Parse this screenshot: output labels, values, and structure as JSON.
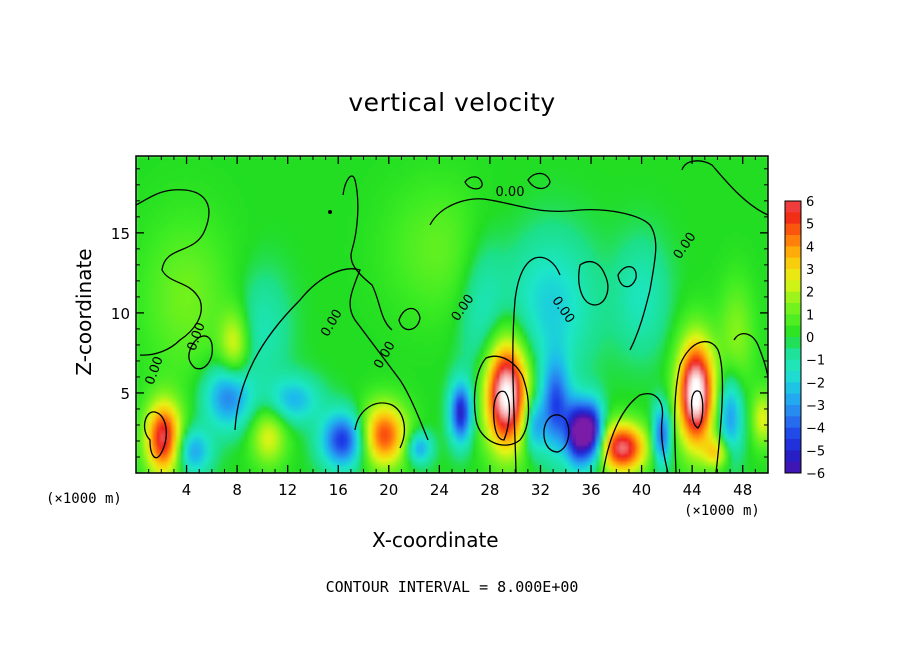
{
  "chart_data": {
    "type": "heatmap",
    "title": "vertical velocity",
    "xlabel": "X-coordinate",
    "ylabel": "Z-coordinate",
    "x_multiplier": "(×1000 m)",
    "y_multiplier": "(×1000 m)",
    "xlim": [
      0,
      50
    ],
    "ylim": [
      0,
      19.8
    ],
    "x_ticks": [
      "4",
      "8",
      "12",
      "16",
      "20",
      "24",
      "28",
      "32",
      "36",
      "40",
      "44",
      "48"
    ],
    "y_ticks": [
      "5",
      "10",
      "15"
    ],
    "colorbar_ticks": [
      "6",
      "5",
      "4",
      "3",
      "2",
      "1",
      "0",
      "−1",
      "−2",
      "−3",
      "−4",
      "−5",
      "−6"
    ],
    "colorbar_range": [
      -6,
      6
    ],
    "contour_labels": [
      "0.00",
      "0.00",
      "0.00",
      "0.00",
      "0.00",
      "0.00",
      "0.00",
      "0.00"
    ],
    "contour_interval_text": "CONTOUR INTERVAL = 8.000E+00",
    "field_features": [
      {
        "x": 2.2,
        "z": 2.2,
        "value": 6,
        "sx": 1.0,
        "sz": 1.6
      },
      {
        "x": 4.5,
        "z": 1.4,
        "value": -3,
        "sx": 1.0,
        "sz": 1.0
      },
      {
        "x": 7.3,
        "z": 4.8,
        "value": -3.5,
        "sx": 1.3,
        "sz": 1.4
      },
      {
        "x": 7.8,
        "z": 8.0,
        "value": 2.5,
        "sx": 0.8,
        "sz": 1.5
      },
      {
        "x": 10.5,
        "z": 2.3,
        "value": 2.5,
        "sx": 1.0,
        "sz": 1.3
      },
      {
        "x": 12.5,
        "z": 4.6,
        "value": -2.5,
        "sx": 1.4,
        "sz": 1.0
      },
      {
        "x": 16.4,
        "z": 2.1,
        "value": -4.8,
        "sx": 1.2,
        "sz": 1.2
      },
      {
        "x": 19.6,
        "z": 2.4,
        "value": 5,
        "sx": 1.3,
        "sz": 1.4
      },
      {
        "x": 22.4,
        "z": 1.6,
        "value": -3,
        "sx": 0.7,
        "sz": 0.7
      },
      {
        "x": 25.7,
        "z": 3.8,
        "value": -5.2,
        "sx": 0.6,
        "sz": 1.3
      },
      {
        "x": 29.3,
        "z": 5.0,
        "value": 8,
        "sx": 1.2,
        "sz": 2.4
      },
      {
        "x": 31.5,
        "z": 3.0,
        "value": -3,
        "sx": 0.6,
        "sz": 1.2
      },
      {
        "x": 33.2,
        "z": 4.2,
        "value": -4.2,
        "sx": 0.8,
        "sz": 2.0
      },
      {
        "x": 35.0,
        "z": 2.5,
        "value": -6.5,
        "sx": 0.7,
        "sz": 1.4
      },
      {
        "x": 36.2,
        "z": 2.6,
        "value": -5.5,
        "sx": 0.6,
        "sz": 1.3
      },
      {
        "x": 38.5,
        "z": 1.6,
        "value": 6.2,
        "sx": 1.3,
        "sz": 1.1
      },
      {
        "x": 41.6,
        "z": 2.4,
        "value": -4.2,
        "sx": 0.5,
        "sz": 1.3
      },
      {
        "x": 44.3,
        "z": 5.0,
        "value": 8,
        "sx": 1.0,
        "sz": 2.3
      },
      {
        "x": 47.0,
        "z": 3.6,
        "value": -3.2,
        "sx": 0.7,
        "sz": 1.8
      },
      {
        "x": 46.0,
        "z": 1.3,
        "value": 3,
        "sx": 0.7,
        "sz": 0.7
      },
      {
        "x": 49.6,
        "z": 3.4,
        "value": 2.5,
        "sx": 0.6,
        "sz": 1.2
      },
      {
        "x": 32.8,
        "z": 10.5,
        "value": -2,
        "sx": 2.4,
        "sz": 3.0
      },
      {
        "x": 27.5,
        "z": 10.0,
        "value": -1.4,
        "sx": 1.3,
        "sz": 3.5
      },
      {
        "x": 4.0,
        "z": 11.0,
        "value": 1.2,
        "sx": 2.5,
        "sz": 3.5
      },
      {
        "x": 24.0,
        "z": 14.0,
        "value": 1.0,
        "sx": 3.0,
        "sz": 3.0
      },
      {
        "x": 40.0,
        "z": 11.0,
        "value": -1.3,
        "sx": 1.5,
        "sz": 2.5
      },
      {
        "x": 47.5,
        "z": 8.5,
        "value": 1.5,
        "sx": 1.0,
        "sz": 2.5
      },
      {
        "x": 10.0,
        "z": 9.0,
        "value": -1.2,
        "sx": 1.5,
        "sz": 2.5
      }
    ],
    "colors": {
      "background": "#22dd22",
      "zero_contour": "#000000"
    }
  }
}
